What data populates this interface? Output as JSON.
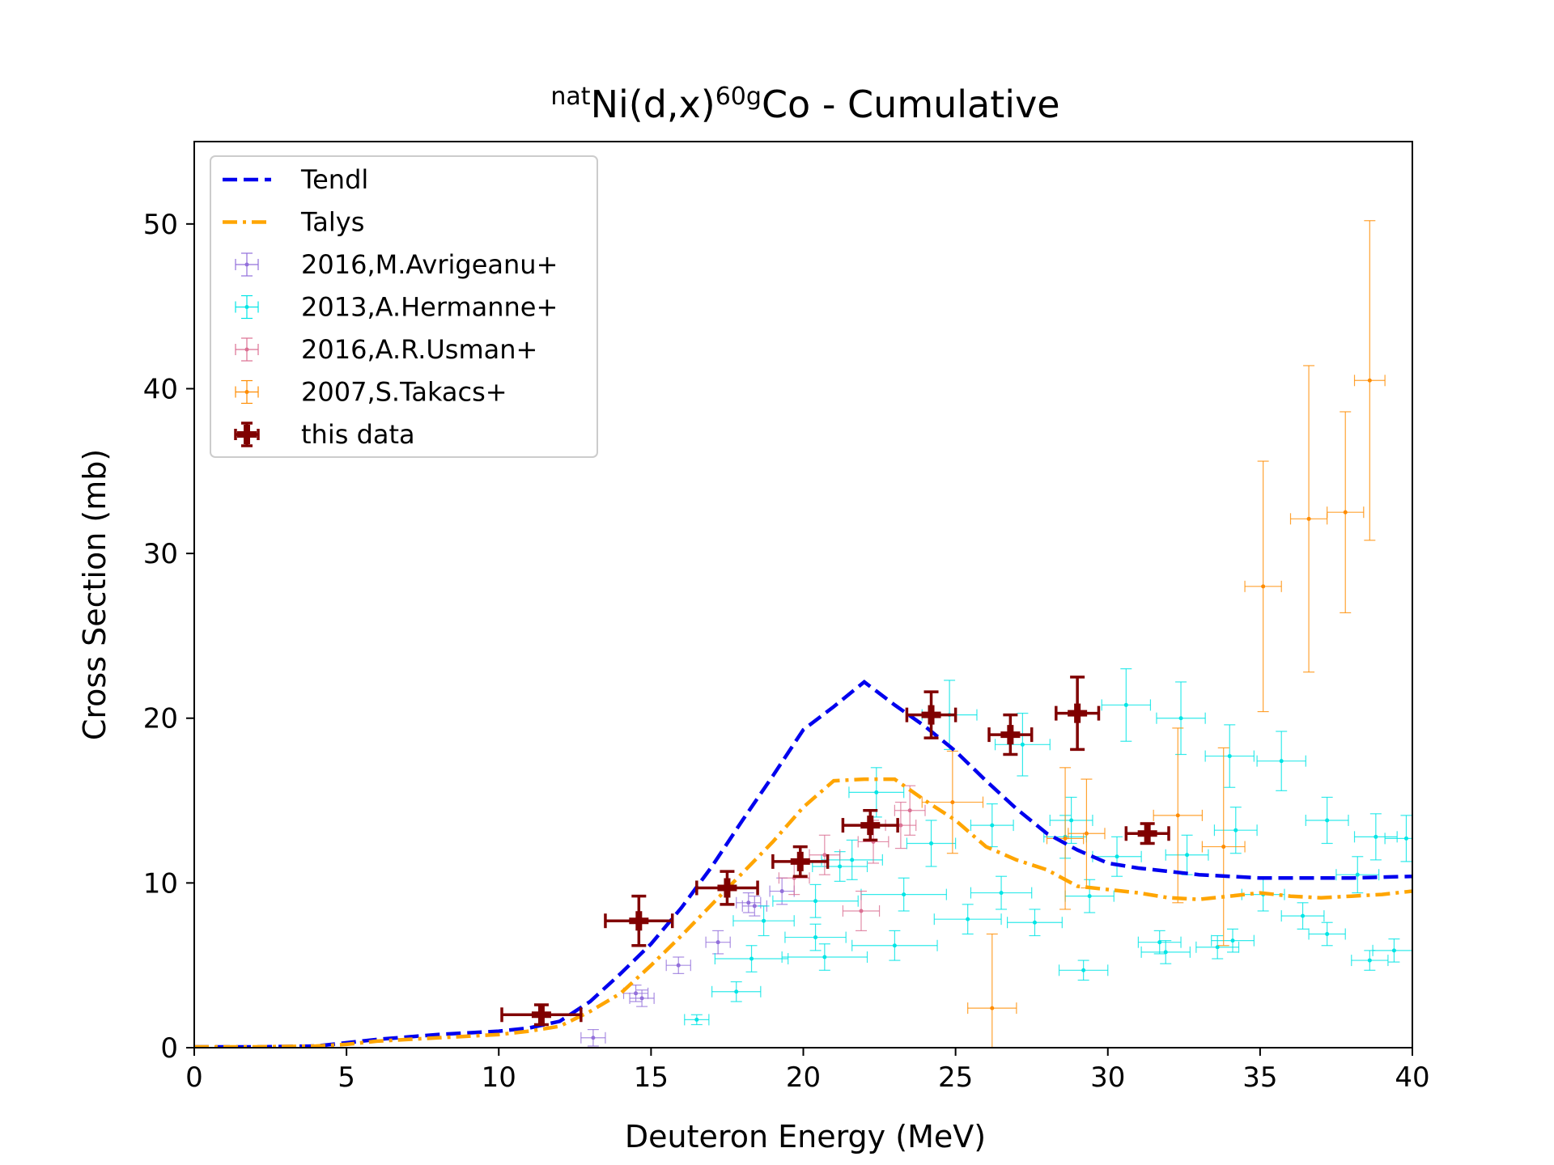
{
  "chart_data": {
    "type": "scatter",
    "title": {
      "prefix_sup": "nat",
      "element": "Ni(d,x)",
      "mass_sup": "60g",
      "product": "Co - Cumulative"
    },
    "xlabel": "Deuteron Energy (MeV)",
    "ylabel": "Cross Section (mb)",
    "xlim": [
      0,
      40
    ],
    "ylim": [
      0,
      55
    ],
    "xticks": [
      0,
      5,
      10,
      15,
      20,
      25,
      30,
      35,
      40
    ],
    "yticks": [
      0,
      10,
      20,
      30,
      40,
      50
    ],
    "grid": false,
    "legend_position": "top-left",
    "series": [
      {
        "name": "Tendl",
        "kind": "line",
        "style": "dashed",
        "color": "#0000ee",
        "x": [
          0,
          2,
          4,
          5,
          6,
          8,
          10,
          11,
          12,
          13,
          14,
          15,
          16,
          17,
          18,
          19,
          20,
          21,
          22,
          23,
          24,
          25,
          26,
          27,
          28,
          29,
          30,
          31,
          32,
          33,
          34,
          35,
          36,
          37,
          38,
          39,
          40
        ],
        "y": [
          0.05,
          0.05,
          0.1,
          0.3,
          0.5,
          0.8,
          1.0,
          1.2,
          1.6,
          2.8,
          4.5,
          6.3,
          8.5,
          11.0,
          13.8,
          16.5,
          19.3,
          20.7,
          22.2,
          20.8,
          19.5,
          18.0,
          16.2,
          14.5,
          13.0,
          12.0,
          11.2,
          10.9,
          10.7,
          10.5,
          10.4,
          10.3,
          10.3,
          10.3,
          10.3,
          10.35,
          10.4
        ]
      },
      {
        "name": "Talys",
        "kind": "line",
        "style": "dashdot",
        "color": "#ffa500",
        "x": [
          0,
          2,
          4,
          5,
          6,
          8,
          10,
          11,
          12,
          13,
          14,
          15,
          16,
          17,
          18,
          19,
          20,
          21,
          22,
          23,
          24,
          25,
          26,
          27,
          28,
          29,
          30,
          31,
          32,
          33,
          34,
          35,
          36,
          37,
          38,
          39,
          40
        ],
        "y": [
          0.05,
          0.05,
          0.1,
          0.2,
          0.4,
          0.6,
          0.8,
          1.0,
          1.3,
          2.2,
          3.3,
          5.0,
          6.8,
          8.7,
          10.6,
          12.5,
          14.6,
          16.2,
          16.3,
          16.3,
          15.0,
          13.8,
          12.2,
          11.4,
          10.8,
          9.8,
          9.6,
          9.4,
          9.1,
          9.0,
          9.2,
          9.4,
          9.2,
          9.1,
          9.2,
          9.3,
          9.5
        ]
      },
      {
        "name": "2016,M.Avrigeanu+",
        "kind": "errorbar",
        "color": "#9370db",
        "points": [
          [
            13.1,
            0.6,
            0.4,
            0.5
          ],
          [
            14.5,
            3.3,
            0.4,
            0.5
          ],
          [
            14.7,
            3.0,
            0.4,
            0.5
          ],
          [
            15.9,
            5.0,
            0.4,
            0.5
          ],
          [
            17.2,
            6.4,
            0.4,
            0.7
          ],
          [
            18.2,
            8.8,
            0.4,
            0.6
          ],
          [
            18.4,
            8.6,
            0.4,
            0.6
          ],
          [
            19.3,
            9.5,
            0.4,
            0.8
          ]
        ]
      },
      {
        "name": "2013,A.Hermanne+",
        "kind": "errorbar",
        "color": "#00e5e5",
        "points": [
          [
            16.5,
            1.7,
            0.4,
            0.3
          ],
          [
            17.8,
            3.4,
            0.8,
            0.6
          ],
          [
            18.3,
            5.4,
            1.2,
            0.8
          ],
          [
            18.7,
            7.7,
            1.0,
            0.9
          ],
          [
            20.4,
            6.7,
            1.0,
            0.8
          ],
          [
            20.7,
            5.5,
            1.4,
            0.8
          ],
          [
            20.4,
            8.9,
            1.4,
            1.0
          ],
          [
            21.2,
            11.0,
            0.9,
            0.9
          ],
          [
            21.6,
            11.4,
            1.0,
            1.2
          ],
          [
            22.4,
            15.5,
            0.9,
            1.5
          ],
          [
            23.0,
            6.2,
            1.4,
            0.9
          ],
          [
            23.3,
            9.3,
            1.4,
            1.0
          ],
          [
            24.2,
            12.4,
            0.8,
            1.4
          ],
          [
            24.8,
            20.2,
            0.9,
            2.1
          ],
          [
            25.4,
            7.8,
            1.1,
            0.9
          ],
          [
            26.2,
            13.5,
            0.7,
            1.3
          ],
          [
            26.5,
            9.4,
            1.0,
            1.0
          ],
          [
            27.2,
            18.4,
            0.9,
            1.9
          ],
          [
            27.6,
            7.6,
            0.9,
            0.8
          ],
          [
            28.6,
            12.8,
            0.7,
            1.3
          ],
          [
            28.8,
            13.8,
            0.7,
            1.4
          ],
          [
            29.4,
            9.2,
            0.8,
            1.0
          ],
          [
            29.2,
            4.7,
            0.8,
            0.6
          ],
          [
            30.3,
            11.6,
            0.8,
            1.2
          ],
          [
            30.6,
            20.8,
            0.8,
            2.2
          ],
          [
            31.7,
            6.4,
            0.7,
            0.7
          ],
          [
            31.9,
            5.8,
            0.8,
            0.7
          ],
          [
            32.4,
            20.0,
            0.8,
            2.2
          ],
          [
            32.6,
            11.7,
            0.7,
            1.2
          ],
          [
            33.6,
            6.1,
            0.7,
            0.7
          ],
          [
            34.0,
            17.7,
            0.8,
            1.9
          ],
          [
            34.2,
            13.2,
            0.7,
            1.4
          ],
          [
            34.1,
            6.5,
            0.7,
            0.7
          ],
          [
            35.1,
            9.3,
            0.7,
            1.0
          ],
          [
            35.7,
            17.4,
            0.8,
            1.8
          ],
          [
            36.4,
            8.0,
            0.7,
            0.8
          ],
          [
            37.2,
            6.9,
            0.6,
            0.7
          ],
          [
            37.2,
            13.8,
            0.7,
            1.4
          ],
          [
            38.2,
            10.5,
            0.7,
            1.1
          ],
          [
            38.8,
            12.8,
            0.7,
            1.4
          ],
          [
            38.6,
            5.3,
            0.6,
            0.6
          ],
          [
            39.4,
            5.9,
            0.7,
            0.7
          ],
          [
            39.8,
            12.7,
            0.7,
            1.4
          ]
        ]
      },
      {
        "name": "2016,A.R.Usman+",
        "kind": "errorbar",
        "color": "#db7093",
        "points": [
          [
            19.7,
            10.3,
            0.5,
            1.0
          ],
          [
            20.7,
            11.7,
            0.5,
            1.2
          ],
          [
            21.9,
            8.3,
            0.6,
            1.2
          ],
          [
            22.3,
            12.5,
            0.5,
            1.3
          ],
          [
            23.5,
            14.4,
            0.5,
            1.5
          ],
          [
            23.2,
            13.5,
            0.5,
            1.4
          ]
        ]
      },
      {
        "name": "2007,S.Takacs+",
        "kind": "errorbar",
        "color": "#ff8c00",
        "points": [
          [
            24.9,
            14.9,
            1.0,
            3.1
          ],
          [
            26.2,
            2.4,
            0.8,
            4.5
          ],
          [
            28.6,
            12.7,
            0.6,
            4.3
          ],
          [
            29.3,
            13.0,
            0.6,
            3.3
          ],
          [
            32.3,
            14.1,
            0.8,
            5.3
          ],
          [
            33.8,
            12.2,
            0.7,
            6.0
          ],
          [
            35.1,
            28.0,
            0.6,
            7.6
          ],
          [
            36.6,
            32.1,
            0.6,
            9.3
          ],
          [
            37.8,
            32.5,
            0.6,
            6.1
          ],
          [
            38.6,
            40.5,
            0.5,
            9.7
          ]
        ]
      },
      {
        "name": "this data",
        "kind": "errorbar",
        "color": "#800000",
        "points": [
          [
            11.4,
            2.0,
            1.3,
            0.6
          ],
          [
            14.6,
            7.7,
            1.1,
            1.5
          ],
          [
            17.5,
            9.7,
            1.0,
            1.0
          ],
          [
            19.9,
            11.3,
            0.9,
            0.9
          ],
          [
            22.2,
            13.5,
            0.9,
            0.9
          ],
          [
            24.2,
            20.2,
            0.8,
            1.4
          ],
          [
            26.8,
            19.0,
            0.7,
            1.2
          ],
          [
            29.0,
            20.3,
            0.7,
            2.2
          ],
          [
            31.3,
            13.0,
            0.7,
            0.6
          ]
        ]
      }
    ]
  }
}
